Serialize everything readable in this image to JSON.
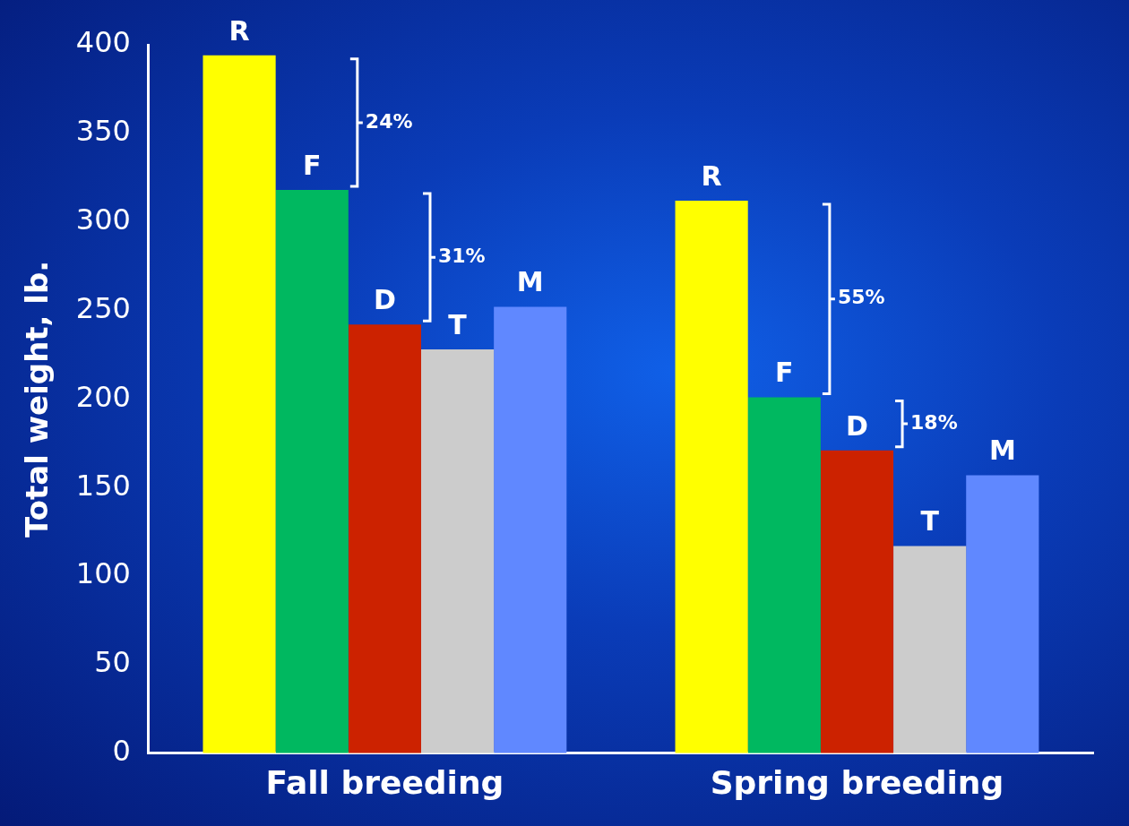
{
  "chart_data": {
    "type": "bar",
    "ylabel": "Total weight, lb.",
    "categories": [
      "Fall breeding",
      "Spring breeding"
    ],
    "series": [
      {
        "name": "R",
        "color": "#ffff00",
        "values": [
          394,
          312
        ]
      },
      {
        "name": "F",
        "color": "#00b860",
        "values": [
          318,
          201
        ]
      },
      {
        "name": "D",
        "color": "#cc2200",
        "values": [
          242,
          171
        ]
      },
      {
        "name": "T",
        "color": "#cccccc",
        "values": [
          228,
          117
        ]
      },
      {
        "name": "M",
        "color": "#6088ff",
        "values": [
          252,
          157
        ]
      }
    ],
    "ylim": [
      0,
      400
    ],
    "yticks": [
      0,
      50,
      100,
      150,
      200,
      250,
      300,
      350,
      400
    ],
    "grid": false,
    "legend": false,
    "annotations": [
      "24%",
      "31%",
      "55%",
      "18%"
    ]
  }
}
